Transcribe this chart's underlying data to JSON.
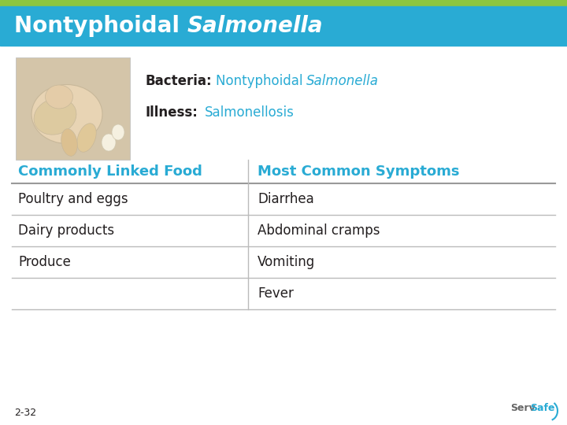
{
  "title_normal": "Nontyphoidal ",
  "title_italic": "Salmonella",
  "header_bg": "#29ABD4",
  "header_green_strip": "#8DC63F",
  "header_text_color": "#FFFFFF",
  "body_bg": "#F0F0F0",
  "bacteria_label": "Bacteria:",
  "bacteria_normal": "Nontyphoidal ",
  "bacteria_italic": "Salmonella",
  "illness_label": "Illness:",
  "illness_value": "Salmonellosis",
  "teal_color": "#29ABD4",
  "dark_text": "#231F20",
  "col1_header": "Commonly Linked Food",
  "col2_header": "Most Common Symptoms",
  "col_header_color": "#29ABD4",
  "table_rows": [
    [
      "Poultry and eggs",
      "Diarrhea"
    ],
    [
      "Dairy products",
      "Abdominal cramps"
    ],
    [
      "Produce",
      "Vomiting"
    ],
    [
      "",
      "Fever"
    ]
  ],
  "line_color": "#BBBBBB",
  "page_num": "2-32",
  "font_size_title": 20,
  "font_size_bacteria": 12,
  "font_size_col_header": 13,
  "font_size_table_body": 12,
  "font_size_pagenum": 9
}
